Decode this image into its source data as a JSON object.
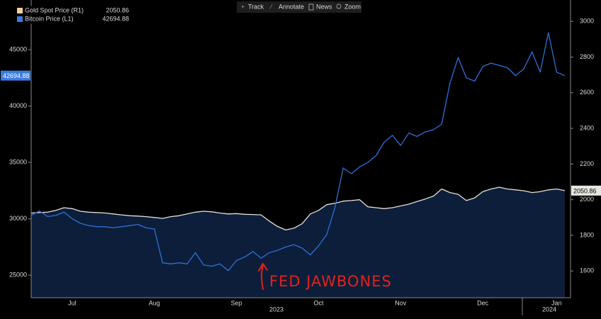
{
  "toolbar": [
    "Track",
    "Annotate",
    "News",
    "Zoom"
  ],
  "chart_data": {
    "type": "line",
    "annotation": "FED JAWBONES",
    "years": [
      "2023",
      "2024"
    ],
    "categories": [
      null,
      null,
      null,
      null,
      null,
      "Jul",
      null,
      null,
      null,
      null,
      null,
      null,
      null,
      null,
      null,
      "Aug",
      null,
      null,
      null,
      null,
      null,
      null,
      null,
      null,
      null,
      "Sep",
      null,
      null,
      null,
      null,
      null,
      null,
      null,
      null,
      null,
      "Oct",
      null,
      null,
      null,
      null,
      null,
      null,
      null,
      null,
      null,
      "Nov",
      null,
      null,
      null,
      null,
      null,
      null,
      null,
      null,
      null,
      "Dec",
      null,
      null,
      null,
      null,
      null,
      null,
      null,
      null,
      "Jan",
      null
    ],
    "series": [
      {
        "name": "Gold Spot Price (R1)",
        "axis": "y2",
        "color": "#f0cf98",
        "line_color": "#e4e0d6",
        "fill": "#0d1e3a",
        "values": [
          1925,
          1928,
          1930,
          1940,
          1955,
          1950,
          1935,
          1930,
          1928,
          1925,
          1920,
          1915,
          1910,
          1908,
          1905,
          1900,
          1895,
          1905,
          1910,
          1920,
          1930,
          1935,
          1932,
          1925,
          1920,
          1922,
          1918,
          1917,
          1915,
          1880,
          1850,
          1830,
          1840,
          1865,
          1920,
          1940,
          1972,
          1980,
          1992,
          1995,
          2000,
          1960,
          1955,
          1950,
          1955,
          1965,
          1975,
          1990,
          2004,
          2020,
          2060,
          2040,
          2030,
          1995,
          2010,
          2045,
          2060,
          2070,
          2060,
          2055,
          2050,
          2040,
          2045,
          2055,
          2060,
          2050.86
        ]
      },
      {
        "name": "Bitcoin Price (L1)",
        "axis": "y",
        "color": "#3a7de0",
        "line_color": "#2f6fd8",
        "values": [
          30300,
          30700,
          30200,
          30300,
          30600,
          30000,
          29600,
          29400,
          29300,
          29300,
          29200,
          29300,
          29400,
          29500,
          29200,
          29100,
          26100,
          26000,
          26100,
          26000,
          27000,
          25900,
          25800,
          26000,
          25400,
          26300,
          26600,
          27100,
          26500,
          27000,
          27200,
          27500,
          27700,
          27400,
          26800,
          27600,
          28600,
          31000,
          34500,
          34000,
          34600,
          35000,
          35600,
          36800,
          37400,
          36500,
          37600,
          37300,
          37700,
          37900,
          38400,
          42000,
          44300,
          42500,
          42200,
          43500,
          43800,
          43600,
          43400,
          42700,
          43300,
          44800,
          43000,
          46500,
          43000,
          42694.88
        ]
      }
    ],
    "ylim": [
      23000,
      49400
    ],
    "yticks": [
      25000,
      30000,
      35000,
      40000,
      45000
    ],
    "y2lim": [
      1450,
      3120
    ],
    "y2ticks": [
      1600,
      1800,
      2000,
      2200,
      2400,
      2600,
      2800,
      3000
    ]
  }
}
